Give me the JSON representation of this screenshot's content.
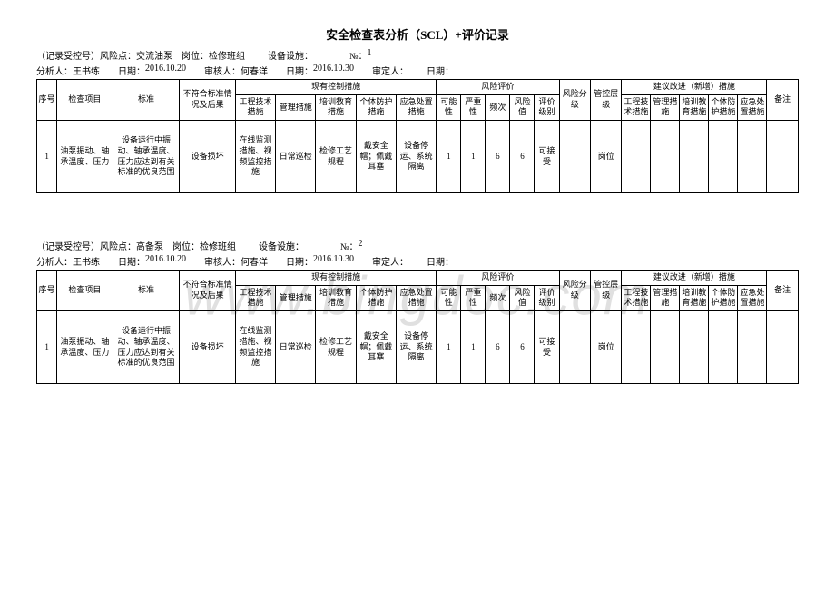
{
  "doc": {
    "title": "安全检查表分析（SCL）+评价记录"
  },
  "sections": [
    {
      "meta1_pre": "（记录受控号）风险点：",
      "risk_point": "交流油泵",
      "post_label": "    岗位：",
      "post": "检修班组",
      "facility_label": "          设备设施：",
      "no_label": "                №：",
      "no": "1",
      "meta2_prefix": "分析人：",
      "analyst": "王书练",
      "date1_label": "        日期：",
      "date1": "2016.10.20",
      "reviewer_label": "        审核人：",
      "reviewer": "何春洋",
      "date2_label": "        日期：",
      "date2": "2016.10.30",
      "approver_label": "        审定人：",
      "date3_label": "        日期：",
      "row": {
        "seq": "1",
        "item": "油泵振动、轴承温度、压力",
        "std": "设备运行中振动、轴承温度、压力应达到有关标准的优良范围",
        "fail": "设备损坏",
        "m1": "在线监测措施、视频监控措施",
        "m2": "日常巡检",
        "m3": "检修工艺规程",
        "m4": "戴安全帽；佩戴耳塞",
        "m5": "设备停运、系统隔离",
        "r1": "1",
        "r2": "1",
        "r3": "6",
        "r4": "6",
        "r5": "可接受",
        "risk_level": "",
        "ctrl_level": "岗位",
        "s1": "",
        "s2": "",
        "s3": "",
        "s4": "",
        "s5": "",
        "note": ""
      }
    },
    {
      "meta1_pre": "（记录受控号）风险点：",
      "risk_point": "高备泵",
      "post_label": "    岗位：",
      "post": "检修班组",
      "facility_label": "          设备设施：",
      "no_label": "                №：",
      "no": "2",
      "meta2_prefix": "分析人：",
      "analyst": "王书练",
      "date1_label": "        日期：",
      "date1": "2016.10.20",
      "reviewer_label": "        审核人：",
      "reviewer": "何春洋",
      "date2_label": "        日期：",
      "date2": "2016.10.30",
      "approver_label": "        审定人：",
      "date3_label": "        日期：",
      "row": {
        "seq": "1",
        "item": "油泵振动、轴承温度、压力",
        "std": "设备运行中振动、轴承温度、压力应达到有关标准的优良范围",
        "fail": "设备损坏",
        "m1": "在线监测措施、视频监控措施",
        "m2": "日常巡检",
        "m3": "检修工艺规程",
        "m4": "戴安全帽；佩戴耳塞",
        "m5": "设备停运、系统隔离",
        "r1": "1",
        "r2": "1",
        "r3": "6",
        "r4": "6",
        "r5": "可接受",
        "risk_level": "",
        "ctrl_level": "岗位",
        "s1": "",
        "s2": "",
        "s3": "",
        "s4": "",
        "s5": "",
        "note": ""
      }
    }
  ],
  "headers": {
    "seq": "序号",
    "item": "检查项目",
    "std": "标准",
    "fail": "不符合标准情况及后果",
    "ctrl_group": "现有控制措施",
    "m1": "工程技术措施",
    "m2": "管理措施",
    "m3": "培训教育措施",
    "m4": "个体防护措施",
    "m5": "应急处置措施",
    "risk_group": "风险评价",
    "r1": "可能性",
    "r2": "严重性",
    "r3": "频次",
    "r4": "风险值",
    "r5": "评价级别",
    "risk_level": "风险分级",
    "ctrl_level": "管控层级",
    "sugg_group": "建议改进（新增）措施",
    "s1": "工程技术措施",
    "s2": "管理措施",
    "s3": "培训教育措施",
    "s4": "个体防护措施",
    "s5": "应急处置措施",
    "note": "备注"
  },
  "watermark": "www.bingdoc.com"
}
